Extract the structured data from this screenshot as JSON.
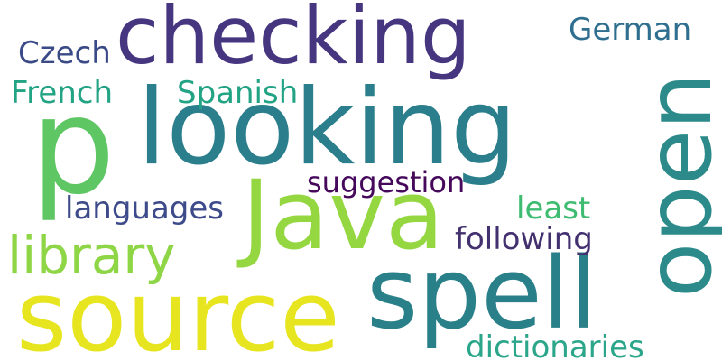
{
  "words": {
    "checking": {
      "text": "checking",
      "color": "#463680"
    },
    "p": {
      "text": "p",
      "color": "#5fc664"
    },
    "looking": {
      "text": "looking",
      "color": "#2b7e8c"
    },
    "open": {
      "text": "open",
      "color": "#2c8a8a"
    },
    "java": {
      "text": "Java",
      "color": "#94d741"
    },
    "spell": {
      "text": "spell",
      "color": "#2a8089"
    },
    "source": {
      "text": "source",
      "color": "#e7e51f"
    },
    "library": {
      "text": "library",
      "color": "#8ed645"
    },
    "german": {
      "text": "German",
      "color": "#2e6e8e"
    },
    "czech": {
      "text": "Czech",
      "color": "#3a4a87"
    },
    "french": {
      "text": "French",
      "color": "#22a384"
    },
    "spanish": {
      "text": "Spanish",
      "color": "#22a384"
    },
    "suggestion": {
      "text": "suggestion",
      "color": "#45085b"
    },
    "languages": {
      "text": "languages",
      "color": "#3d4b8a"
    },
    "least": {
      "text": "least",
      "color": "#3fbc72"
    },
    "following": {
      "text": "following",
      "color": "#43306f"
    },
    "dictionaries": {
      "text": "dictionaries",
      "color": "#2ba68a"
    }
  }
}
